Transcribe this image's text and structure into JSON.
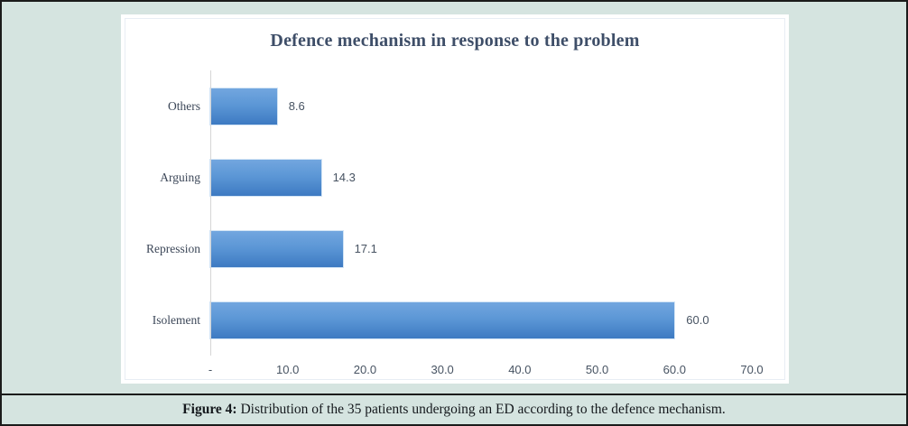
{
  "figure": {
    "background_color": "#d5e4e0",
    "frame_border_color": "#1b1b1b",
    "caption": {
      "prefix": "Figure 4:",
      "text": " Distribution of the 35 patients undergoing an ED according to the defence mechanism."
    }
  },
  "chart": {
    "title": "Defence mechanism in response to the problem",
    "colors": {
      "title_text": "#3e4e68",
      "bar_gradient_top": "#72a6df",
      "bar_gradient_bottom": "#3d7ac2",
      "axis_line": "#d6d6d6",
      "category_label_text": "#3c4758",
      "value_label_text": "#475362"
    },
    "bars": [
      {
        "label": "Others",
        "value": 8.6,
        "value_label": "8.6"
      },
      {
        "label": "Arguing",
        "value": 14.3,
        "value_label": "14.3"
      },
      {
        "label": "Repression",
        "value": 17.1,
        "value_label": "17.1"
      },
      {
        "label": "Isolement",
        "value": 60.0,
        "value_label": "60.0"
      }
    ],
    "x_axis": {
      "ticks": [
        "-",
        "10.0",
        "20.0",
        "30.0",
        "40.0",
        "50.0",
        "60.0",
        "70.0"
      ],
      "max": 70
    }
  },
  "chart_data": {
    "type": "bar",
    "orientation": "horizontal",
    "title": "Defence mechanism in response to the problem",
    "categories": [
      "Others",
      "Arguing",
      "Repression",
      "Isolement"
    ],
    "values": [
      8.6,
      14.3,
      17.1,
      60.0
    ],
    "data_labels": [
      "8.6",
      "14.3",
      "17.1",
      "60.0"
    ],
    "xlabel": "",
    "ylabel": "",
    "xlim": [
      0,
      70
    ],
    "x_tick_labels": [
      "-",
      "10.0",
      "20.0",
      "30.0",
      "40.0",
      "50.0",
      "60.0",
      "70.0"
    ],
    "grid": false,
    "legend": false,
    "caption": "Figure 4: Distribution of the 35 patients undergoing an ED according to the defence mechanism."
  }
}
